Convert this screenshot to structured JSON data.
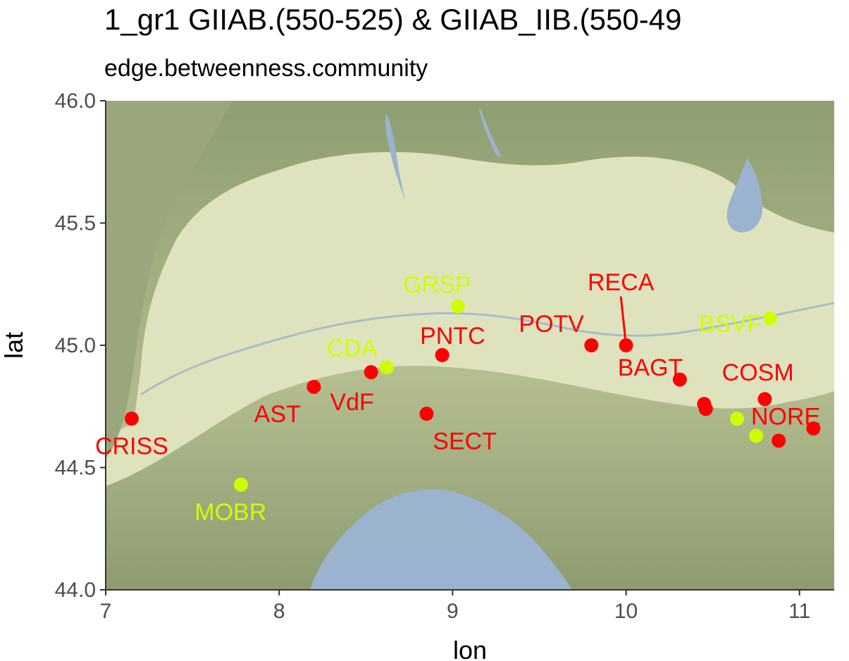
{
  "title": "1_gr1 GIIAB.(550-525) & GIIAB_IIB.(550-49",
  "subtitle": "edge.betweenness.community",
  "chart_data": {
    "type": "scatter",
    "map_background": "terrain basemap of northern Italy (Po valley, Alps, Ligurian Sea)",
    "xlabel": "lon",
    "ylabel": "lat",
    "xlim": [
      7.0,
      11.2
    ],
    "ylim": [
      44.0,
      46.0
    ],
    "x_ticks": [
      {
        "value": 7,
        "label": "7"
      },
      {
        "value": 8,
        "label": "8"
      },
      {
        "value": 9,
        "label": "9"
      },
      {
        "value": 10,
        "label": "10"
      },
      {
        "value": 11,
        "label": "11"
      }
    ],
    "y_ticks": [
      {
        "value": 44.0,
        "label": "44.0"
      },
      {
        "value": 44.5,
        "label": "44.5"
      },
      {
        "value": 45.0,
        "label": "45.0"
      },
      {
        "value": 45.5,
        "label": "45.5"
      },
      {
        "value": 46.0,
        "label": "46.0"
      }
    ],
    "colors": {
      "red_group": "#ff0000",
      "yellow_group": "#ccff00",
      "sea": "#9ab3cf",
      "plain": "#dfe3bd",
      "mountain": "#a9b38a"
    },
    "points": [
      {
        "lon": 7.15,
        "lat": 44.7,
        "color": "#ff0000"
      },
      {
        "lon": 7.78,
        "lat": 44.43,
        "color": "#ccff00"
      },
      {
        "lon": 8.2,
        "lat": 44.83,
        "color": "#ff0000"
      },
      {
        "lon": 8.53,
        "lat": 44.89,
        "color": "#ff0000"
      },
      {
        "lon": 8.62,
        "lat": 44.91,
        "color": "#ccff00"
      },
      {
        "lon": 8.85,
        "lat": 44.72,
        "color": "#ff0000"
      },
      {
        "lon": 8.94,
        "lat": 44.96,
        "color": "#ff0000"
      },
      {
        "lon": 9.03,
        "lat": 45.16,
        "color": "#ccff00"
      },
      {
        "lon": 9.8,
        "lat": 45.0,
        "color": "#ff0000"
      },
      {
        "lon": 10.0,
        "lat": 45.0,
        "color": "#ff0000"
      },
      {
        "lon": 10.31,
        "lat": 44.86,
        "color": "#ff0000"
      },
      {
        "lon": 10.45,
        "lat": 44.76,
        "color": "#ff0000"
      },
      {
        "lon": 10.46,
        "lat": 44.74,
        "color": "#ff0000"
      },
      {
        "lon": 10.64,
        "lat": 44.7,
        "color": "#ccff00"
      },
      {
        "lon": 10.75,
        "lat": 44.63,
        "color": "#ccff00"
      },
      {
        "lon": 10.8,
        "lat": 44.78,
        "color": "#ff0000"
      },
      {
        "lon": 10.83,
        "lat": 45.11,
        "color": "#ccff00"
      },
      {
        "lon": 10.88,
        "lat": 44.61,
        "color": "#ff0000"
      },
      {
        "lon": 11.08,
        "lat": 44.66,
        "color": "#ff0000"
      }
    ],
    "labels": [
      {
        "text": "CRISS",
        "lon": 7.15,
        "lat": 44.59,
        "color": "#ff0000"
      },
      {
        "text": "MOBR",
        "lon": 7.72,
        "lat": 44.32,
        "color": "#ccff00"
      },
      {
        "text": "AST",
        "lon": 7.99,
        "lat": 44.72,
        "color": "#ff0000"
      },
      {
        "text": "VdF",
        "lon": 8.42,
        "lat": 44.77,
        "color": "#ff0000"
      },
      {
        "text": "CDA",
        "lon": 8.42,
        "lat": 44.99,
        "color": "#ccff00"
      },
      {
        "text": "SECT",
        "lon": 9.07,
        "lat": 44.61,
        "color": "#ff0000"
      },
      {
        "text": "PNTC",
        "lon": 9.0,
        "lat": 45.04,
        "color": "#ff0000"
      },
      {
        "text": "GRSP",
        "lon": 8.91,
        "lat": 45.25,
        "color": "#ccff00"
      },
      {
        "text": "POTV",
        "lon": 9.57,
        "lat": 45.09,
        "color": "#ff0000"
      },
      {
        "text": "RECA",
        "lon": 9.97,
        "lat": 45.26,
        "color": "#ff0000"
      },
      {
        "text": "BAGT",
        "lon": 10.14,
        "lat": 44.91,
        "color": "#ff0000"
      },
      {
        "text": "BSVF",
        "lon": 10.6,
        "lat": 45.09,
        "color": "#ccff00"
      },
      {
        "text": "COSM",
        "lon": 10.76,
        "lat": 44.89,
        "color": "#ff0000"
      },
      {
        "text": "NORE",
        "lon": 10.92,
        "lat": 44.71,
        "color": "#ff0000"
      }
    ],
    "leader_line": {
      "from": {
        "lon": 9.97,
        "lat": 45.2
      },
      "to": {
        "lon": 10.0,
        "lat": 45.0
      },
      "color": "#ff0000"
    }
  }
}
